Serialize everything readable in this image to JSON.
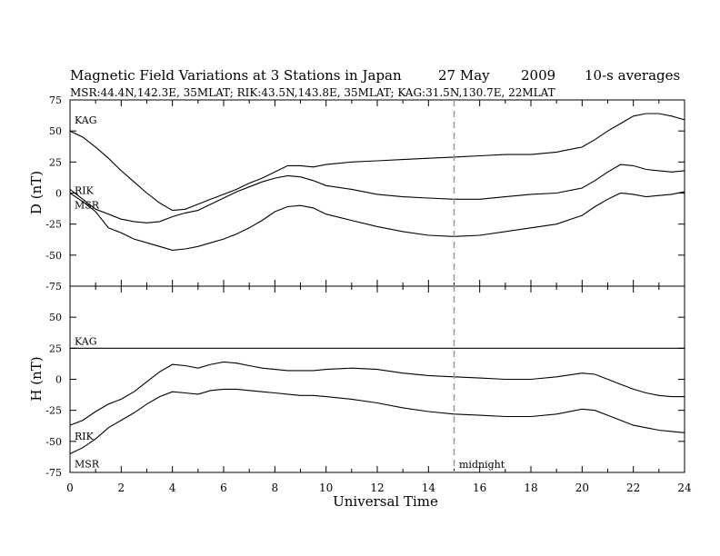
{
  "header": {
    "title": "Magnetic Field Variations at 3 Stations in Japan",
    "date": "27 May",
    "year": "2009",
    "averaging": "10-s averages",
    "stations": "MSR:44.4N,142.3E, 35MLAT;  RIK:43.5N,143.8E, 35MLAT;  KAG:31.5N,130.7E, 22MLAT"
  },
  "chart_data": [
    {
      "type": "line",
      "panel": "D",
      "ylabel": "D (nT)",
      "ylim": [
        -75,
        75
      ],
      "yticks": [
        -75,
        -50,
        -25,
        0,
        25,
        50,
        75
      ],
      "xlim": [
        0,
        24
      ],
      "series": [
        {
          "name": "KAG",
          "x": [
            0,
            0.5,
            1,
            1.5,
            2,
            2.5,
            3,
            3.5,
            4,
            4.5,
            5,
            5.5,
            6,
            6.5,
            7,
            7.5,
            8,
            8.5,
            9,
            9.5,
            10,
            11,
            12,
            13,
            14,
            15,
            16,
            17,
            18,
            19,
            20,
            20.5,
            21,
            21.5,
            22,
            22.5,
            23,
            23.5,
            24
          ],
          "y": [
            50,
            45,
            37,
            28,
            18,
            9,
            0,
            -8,
            -14,
            -13,
            -9,
            -5,
            -1,
            3,
            8,
            12,
            17,
            22,
            22,
            21,
            23,
            25,
            26,
            27,
            28,
            29,
            30,
            31,
            31,
            33,
            37,
            43,
            50,
            56,
            62,
            64,
            64,
            62,
            59
          ]
        },
        {
          "name": "RIK",
          "x": [
            0,
            0.5,
            1,
            1.5,
            2,
            2.5,
            3,
            3.5,
            4,
            4.5,
            5,
            5.5,
            6,
            6.5,
            7,
            7.5,
            8,
            8.5,
            9,
            9.5,
            10,
            11,
            12,
            13,
            14,
            15,
            16,
            17,
            18,
            19,
            20,
            20.5,
            21,
            21.5,
            22,
            22.5,
            23,
            23.5,
            24
          ],
          "y": [
            3,
            -5,
            -13,
            -17,
            -21,
            -23,
            -24,
            -23,
            -19,
            -16,
            -14,
            -9,
            -4,
            1,
            5,
            9,
            12,
            14,
            13,
            10,
            6,
            3,
            -1,
            -3,
            -4,
            -5,
            -5,
            -3,
            -1,
            0,
            4,
            10,
            17,
            23,
            22,
            19,
            18,
            17,
            18
          ]
        },
        {
          "name": "MSR",
          "x": [
            0,
            0.5,
            1,
            1.5,
            2,
            2.5,
            3,
            3.5,
            4,
            4.5,
            5,
            5.5,
            6,
            6.5,
            7,
            7.5,
            8,
            8.5,
            9,
            9.5,
            10,
            11,
            12,
            13,
            14,
            15,
            16,
            17,
            18,
            19,
            20,
            20.5,
            21,
            21.5,
            22,
            22.5,
            23,
            23.5,
            24
          ],
          "y": [
            0,
            -7,
            -15,
            -28,
            -32,
            -37,
            -40,
            -43,
            -46,
            -45,
            -43,
            -40,
            -37,
            -33,
            -28,
            -22,
            -15,
            -11,
            -10,
            -12,
            -17,
            -22,
            -27,
            -31,
            -34,
            -35,
            -34,
            -31,
            -28,
            -25,
            -18,
            -11,
            -5,
            0,
            -1,
            -3,
            -2,
            -1,
            1
          ]
        }
      ]
    },
    {
      "type": "line",
      "panel": "H",
      "ylabel": "H (nT)",
      "xlabel": "Universal Time",
      "ylim": [
        -75,
        75
      ],
      "yticks": [
        -75,
        -50,
        -25,
        0,
        25,
        50,
        75
      ],
      "xlim": [
        0,
        24
      ],
      "xticks": [
        0,
        2,
        4,
        6,
        8,
        10,
        12,
        14,
        16,
        18,
        20,
        22,
        24
      ],
      "series": [
        {
          "name": "KAG",
          "x": [
            0,
            24
          ],
          "y": [
            25,
            25
          ]
        },
        {
          "name": "RIK",
          "x": [
            0,
            0.5,
            1,
            1.5,
            2,
            2.5,
            3,
            3.5,
            4,
            4.5,
            5,
            5.5,
            6,
            6.5,
            7,
            7.5,
            8,
            8.5,
            9,
            9.5,
            10,
            11,
            12,
            13,
            14,
            15,
            16,
            17,
            18,
            19,
            20,
            20.5,
            21,
            21.5,
            22,
            22.5,
            23,
            23.5,
            24
          ],
          "y": [
            -37,
            -33,
            -26,
            -20,
            -16,
            -10,
            -2,
            6,
            12,
            11,
            9,
            12,
            14,
            13,
            11,
            9,
            8,
            7,
            7,
            7,
            8,
            9,
            8,
            5,
            3,
            2,
            1,
            0,
            0,
            2,
            5,
            4,
            0,
            -4,
            -8,
            -11,
            -13,
            -14,
            -14
          ]
        },
        {
          "name": "MSR",
          "x": [
            0,
            0.5,
            1,
            1.5,
            2,
            2.5,
            3,
            3.5,
            4,
            4.5,
            5,
            5.5,
            6,
            6.5,
            7,
            7.5,
            8,
            8.5,
            9,
            9.5,
            10,
            11,
            12,
            13,
            14,
            15,
            16,
            17,
            18,
            19,
            20,
            20.5,
            21,
            21.5,
            22,
            22.5,
            23,
            23.5,
            24
          ],
          "y": [
            -60,
            -55,
            -48,
            -39,
            -33,
            -27,
            -20,
            -14,
            -10,
            -11,
            -12,
            -9,
            -8,
            -8,
            -9,
            -10,
            -11,
            -12,
            -13,
            -13,
            -14,
            -16,
            -19,
            -23,
            -26,
            -28,
            -29,
            -30,
            -30,
            -28,
            -24,
            -25,
            -29,
            -33,
            -37,
            -39,
            -41,
            -42,
            -43
          ]
        }
      ]
    }
  ],
  "annotations": {
    "midnight_label": "midnight",
    "midnight_ut": 15
  },
  "colors": {
    "line": "#000000",
    "midnight_line": "#999999",
    "background": "#ffffff"
  }
}
